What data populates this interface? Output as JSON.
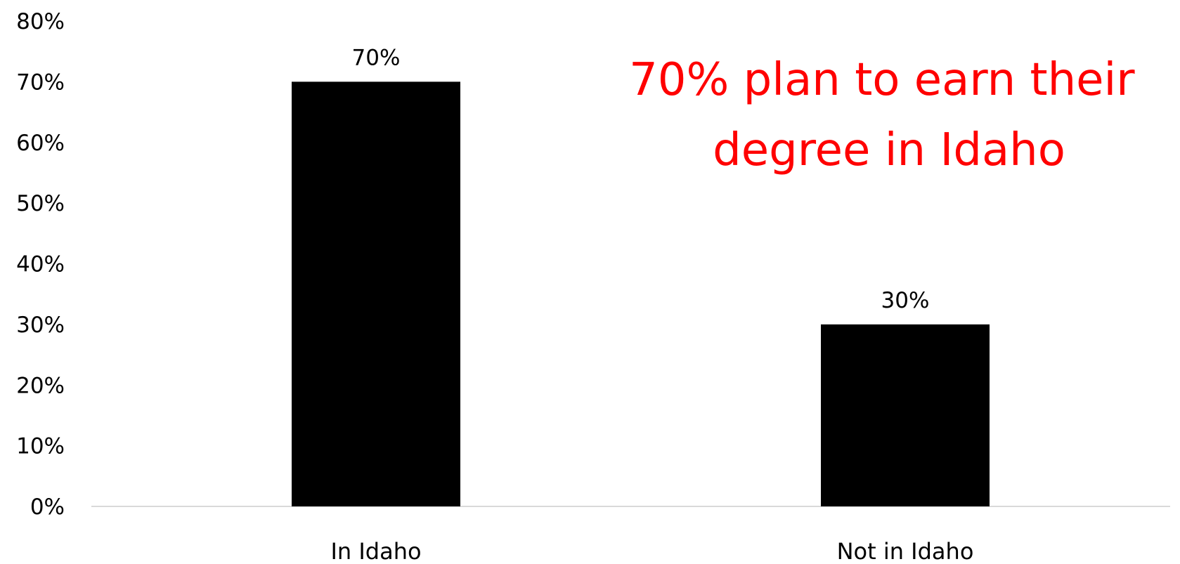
{
  "chart_data": {
    "type": "bar",
    "categories": [
      "In Idaho",
      "Not in Idaho"
    ],
    "values": [
      70,
      30
    ],
    "data_labels": [
      "70%",
      "30%"
    ],
    "ylim": [
      0,
      80
    ],
    "yticks": [
      0,
      10,
      20,
      30,
      40,
      50,
      60,
      70,
      80
    ],
    "ytick_labels": [
      "0%",
      "10%",
      "20%",
      "30%",
      "40%",
      "50%",
      "60%",
      "70%",
      "80%"
    ],
    "grid": false,
    "legend": "none",
    "bar_color": "#000000",
    "annotation": {
      "lines": [
        "70% plan to earn their",
        "degree in Idaho"
      ],
      "color": "#ff0000"
    }
  }
}
